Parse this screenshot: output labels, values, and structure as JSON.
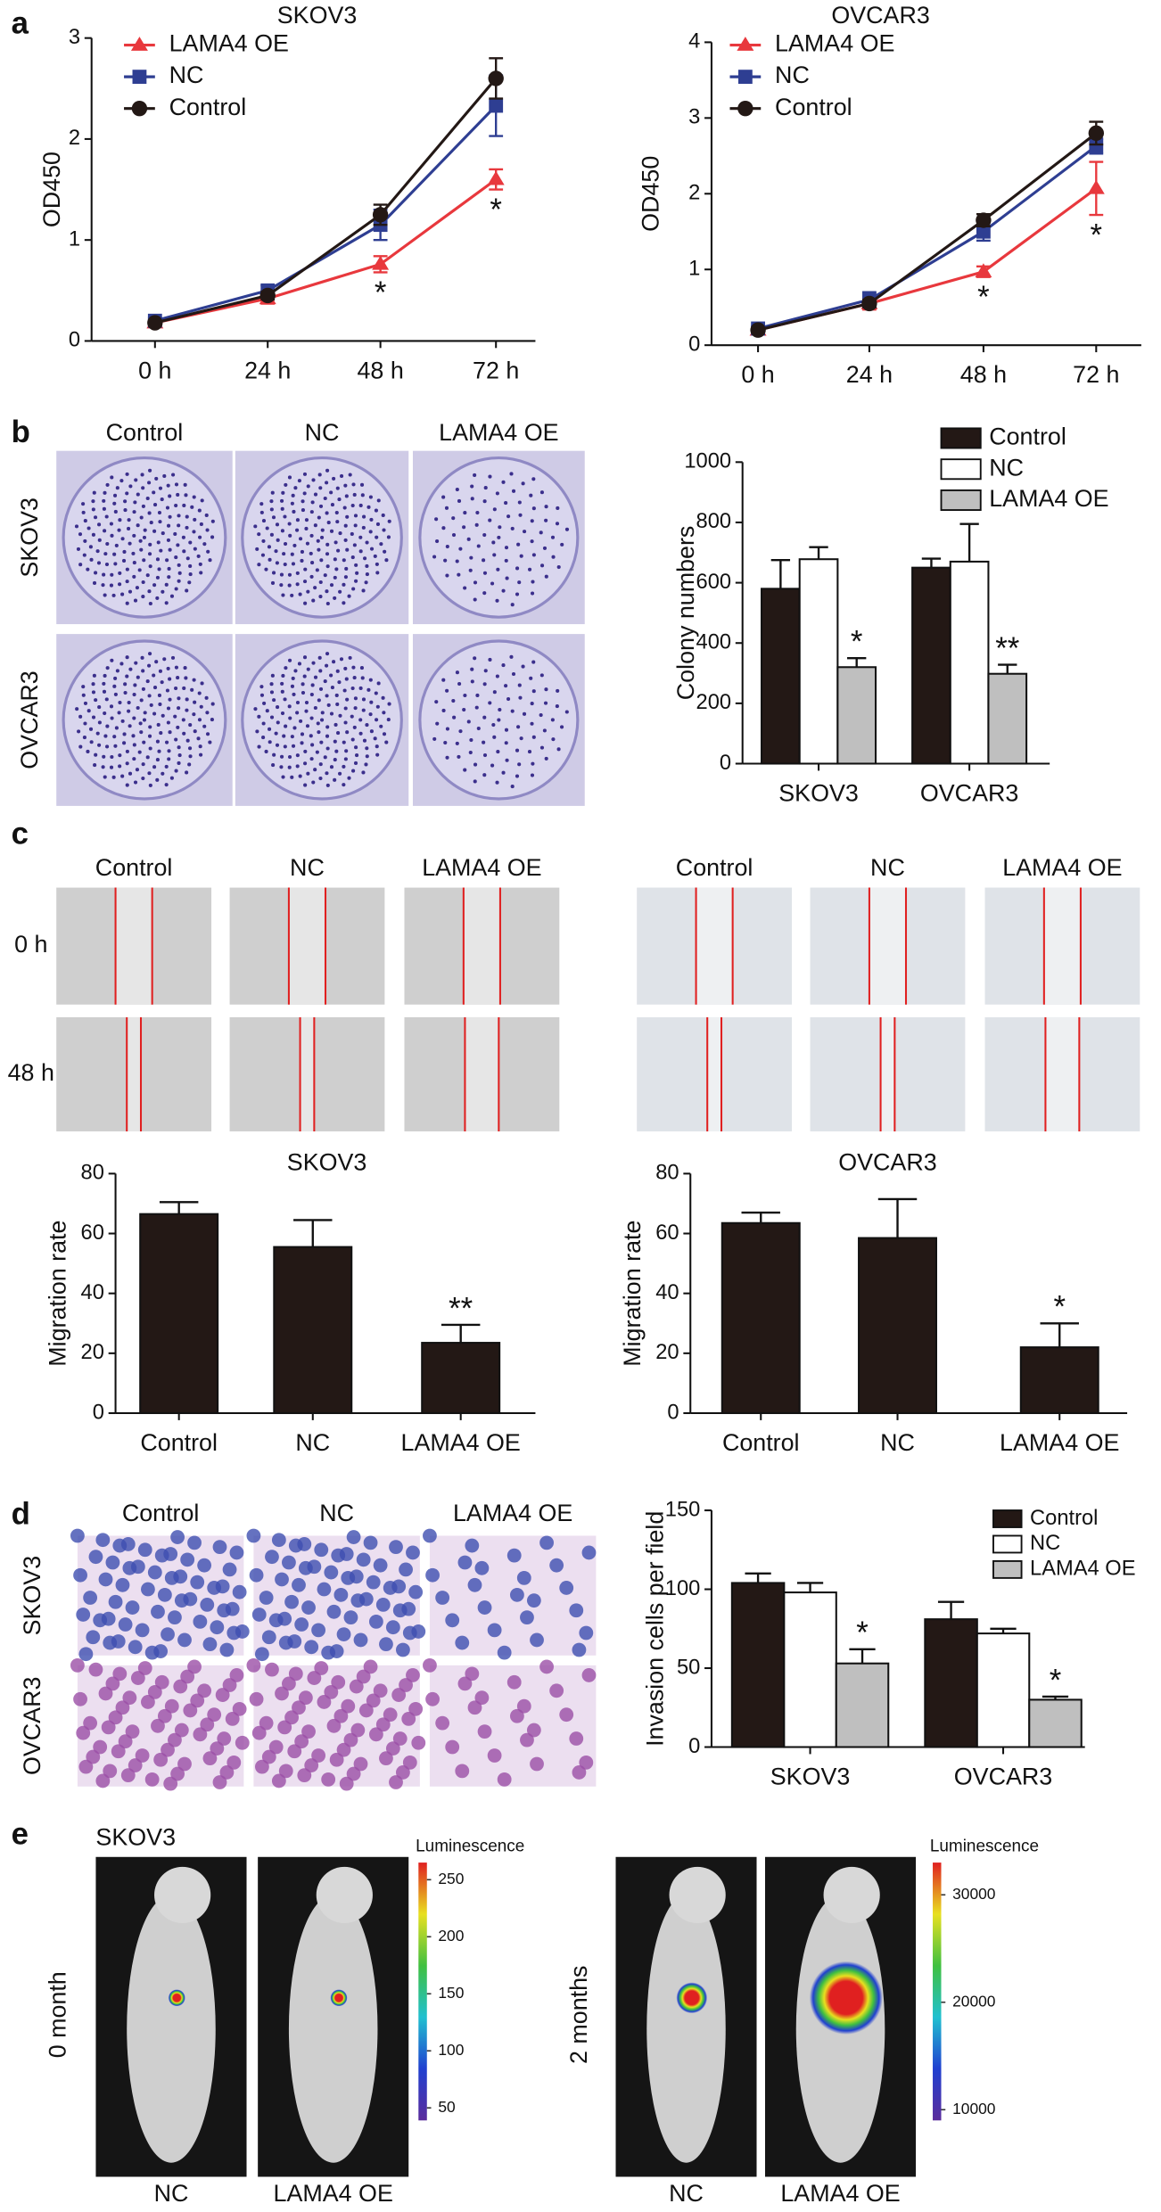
{
  "panel_labels": [
    "a",
    "b",
    "c",
    "d",
    "e"
  ],
  "colony_images": {
    "columns": [
      "Control",
      "NC",
      "LAMA4 OE"
    ],
    "rows": [
      "SKOV3",
      "OVCAR3"
    ]
  },
  "wound_images": {
    "panels": [
      {
        "columns": [
          "Control",
          "NC",
          "LAMA4 OE"
        ]
      },
      {
        "columns": [
          "Control",
          "NC",
          "LAMA4 OE"
        ]
      }
    ],
    "rows": [
      "0 h",
      "48 h"
    ]
  },
  "invasion_images": {
    "columns": [
      "Control",
      "NC",
      "LAMA4 OE"
    ],
    "rows": [
      "SKOV3",
      "OVCAR3"
    ]
  },
  "imaging": {
    "cell_line": "SKOV3",
    "colorbar_title": "Luminescence",
    "groups": [
      {
        "time": "0 month",
        "mice": [
          "NC",
          "LAMA4 OE"
        ],
        "lim": [
          39,
          265
        ],
        "ticks": [
          50,
          100,
          150,
          200,
          250
        ]
      },
      {
        "time": "2 months",
        "mice": [
          "NC",
          "LAMA4 OE"
        ],
        "lim": [
          9000,
          33000
        ],
        "ticks": [
          10000,
          20000,
          30000
        ]
      }
    ]
  },
  "chart_data": [
    {
      "type": "line",
      "title": "SKOV3",
      "y_label": "OD450",
      "categories": [
        "0 h",
        "24 h",
        "48 h",
        "72 h"
      ],
      "ylim": [
        0,
        3
      ],
      "yticks": [
        0,
        1,
        2,
        3
      ],
      "series": [
        {
          "name": "LAMA4 OE",
          "color": "#e8383d",
          "marker": "triangle",
          "values": [
            0.18,
            0.42,
            0.76,
            1.6
          ],
          "errors": [
            0.03,
            0.05,
            0.08,
            0.1
          ]
        },
        {
          "name": "NC",
          "color": "#2e3e92",
          "marker": "square",
          "values": [
            0.2,
            0.5,
            1.15,
            2.33
          ],
          "errors": [
            0.03,
            0.05,
            0.15,
            0.3
          ]
        },
        {
          "name": "Control",
          "color": "#231815",
          "marker": "circle",
          "values": [
            0.18,
            0.45,
            1.25,
            2.6
          ],
          "errors": [
            0.02,
            0.04,
            0.1,
            0.2
          ]
        }
      ],
      "annotations": [
        {
          "text": "*",
          "category": "48 h",
          "series": "LAMA4 OE"
        },
        {
          "text": "*",
          "category": "72 h",
          "series": "LAMA4 OE"
        }
      ]
    },
    {
      "type": "line",
      "title": "OVCAR3",
      "y_label": "OD450",
      "categories": [
        "0 h",
        "24 h",
        "48 h",
        "72 h"
      ],
      "ylim": [
        0,
        4
      ],
      "yticks": [
        0,
        1,
        2,
        3,
        4
      ],
      "series": [
        {
          "name": "LAMA4 OE",
          "color": "#e8383d",
          "marker": "triangle",
          "values": [
            0.2,
            0.55,
            0.97,
            2.07
          ],
          "errors": [
            0.03,
            0.08,
            0.07,
            0.35
          ]
        },
        {
          "name": "NC",
          "color": "#2e3e92",
          "marker": "square",
          "values": [
            0.22,
            0.6,
            1.5,
            2.63
          ],
          "errors": [
            0.03,
            0.1,
            0.12,
            0.1
          ]
        },
        {
          "name": "Control",
          "color": "#231815",
          "marker": "circle",
          "values": [
            0.2,
            0.55,
            1.65,
            2.8
          ],
          "errors": [
            0.03,
            0.05,
            0.08,
            0.15
          ]
        }
      ],
      "annotations": [
        {
          "text": "*",
          "category": "48 h",
          "series": "LAMA4 OE"
        },
        {
          "text": "*",
          "category": "72 h",
          "series": "LAMA4 OE"
        }
      ]
    },
    {
      "type": "bar",
      "y_label": "Colony numbers",
      "categories": [
        "SKOV3",
        "OVCAR3"
      ],
      "ylim": [
        0,
        1000
      ],
      "yticks": [
        0,
        200,
        400,
        600,
        800,
        1000
      ],
      "series": [
        {
          "name": "Control",
          "color": "#231815",
          "values": [
            580,
            650
          ],
          "errors": [
            95,
            30
          ]
        },
        {
          "name": "NC",
          "color": "#ffffff",
          "values": [
            678,
            670
          ],
          "errors": [
            40,
            125
          ]
        },
        {
          "name": "LAMA4 OE",
          "color": "#bfbfbf",
          "values": [
            320,
            298
          ],
          "errors": [
            30,
            30
          ]
        }
      ],
      "annotations": [
        {
          "text": "*",
          "category": "SKOV3",
          "series": "LAMA4 OE"
        },
        {
          "text": "**",
          "category": "OVCAR3",
          "series": "LAMA4 OE"
        }
      ]
    },
    {
      "type": "bar",
      "title": "SKOV3",
      "y_label": "Migration rate",
      "categories": [
        "Control",
        "NC",
        "LAMA4 OE"
      ],
      "ylim": [
        0,
        80
      ],
      "yticks": [
        0,
        20,
        40,
        60,
        80
      ],
      "series": [
        {
          "color": "#231815",
          "values": [
            66.5,
            55.5,
            23.5
          ],
          "errors": [
            4,
            9,
            6
          ]
        }
      ],
      "annotations": [
        {
          "text": "**",
          "category": "LAMA4 OE"
        }
      ]
    },
    {
      "type": "bar",
      "title": "OVCAR3",
      "y_label": "Migration rate",
      "categories": [
        "Control",
        "NC",
        "LAMA4 OE"
      ],
      "ylim": [
        0,
        80
      ],
      "yticks": [
        0,
        20,
        40,
        60,
        80
      ],
      "series": [
        {
          "color": "#231815",
          "values": [
            63.5,
            58.5,
            22
          ],
          "errors": [
            3.5,
            13,
            8
          ]
        }
      ],
      "annotations": [
        {
          "text": "*",
          "category": "LAMA4 OE"
        }
      ]
    },
    {
      "type": "bar",
      "y_label": "Invasion cells per field",
      "categories": [
        "SKOV3",
        "OVCAR3"
      ],
      "ylim": [
        0,
        150
      ],
      "yticks": [
        0,
        50,
        100,
        150
      ],
      "series": [
        {
          "name": "Control",
          "color": "#231815",
          "values": [
            104,
            81
          ],
          "errors": [
            6,
            11
          ]
        },
        {
          "name": "NC",
          "color": "#ffffff",
          "values": [
            98,
            72
          ],
          "errors": [
            6,
            3
          ]
        },
        {
          "name": "LAMA4 OE",
          "color": "#bfbfbf",
          "values": [
            53,
            30
          ],
          "errors": [
            9,
            2
          ]
        }
      ],
      "annotations": [
        {
          "text": "*",
          "category": "SKOV3",
          "series": "LAMA4 OE"
        },
        {
          "text": "*",
          "category": "OVCAR3",
          "series": "LAMA4 OE"
        }
      ]
    }
  ]
}
